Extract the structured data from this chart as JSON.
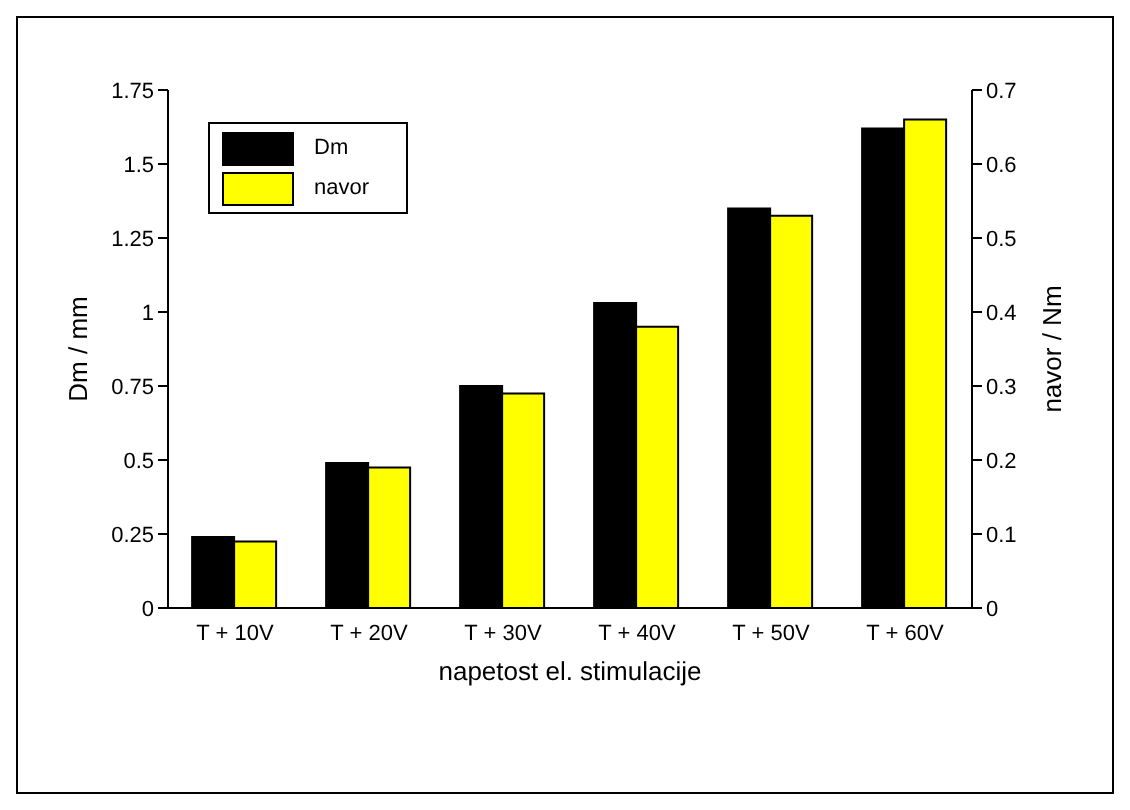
{
  "chart_data": {
    "type": "bar",
    "xlabel": "napetost el. stimulacije",
    "ylabel": "Dm / mm",
    "y2label": "navor / Nm",
    "categories": [
      "T + 10V",
      "T + 20V",
      "T + 30V",
      "T + 40V",
      "T + 50V",
      "T + 60V"
    ],
    "series": [
      {
        "name": "Dm",
        "color": "#000000",
        "values": [
          0.24,
          0.49,
          0.75,
          1.03,
          1.35,
          1.62
        ]
      },
      {
        "name": "navor",
        "color": "#ffff00",
        "axis": "y2",
        "values": [
          0.09,
          0.19,
          0.29,
          0.38,
          0.53,
          0.66
        ]
      }
    ],
    "ylim": [
      0,
      1.75
    ],
    "yticks": [
      0,
      0.25,
      0.5,
      0.75,
      1,
      1.25,
      1.5,
      1.75
    ],
    "y2lim": [
      0,
      0.7
    ],
    "y2ticks": [
      0,
      0.1,
      0.2,
      0.3,
      0.4,
      0.5,
      0.6,
      0.7
    ],
    "grid": false,
    "legend": "top left"
  }
}
